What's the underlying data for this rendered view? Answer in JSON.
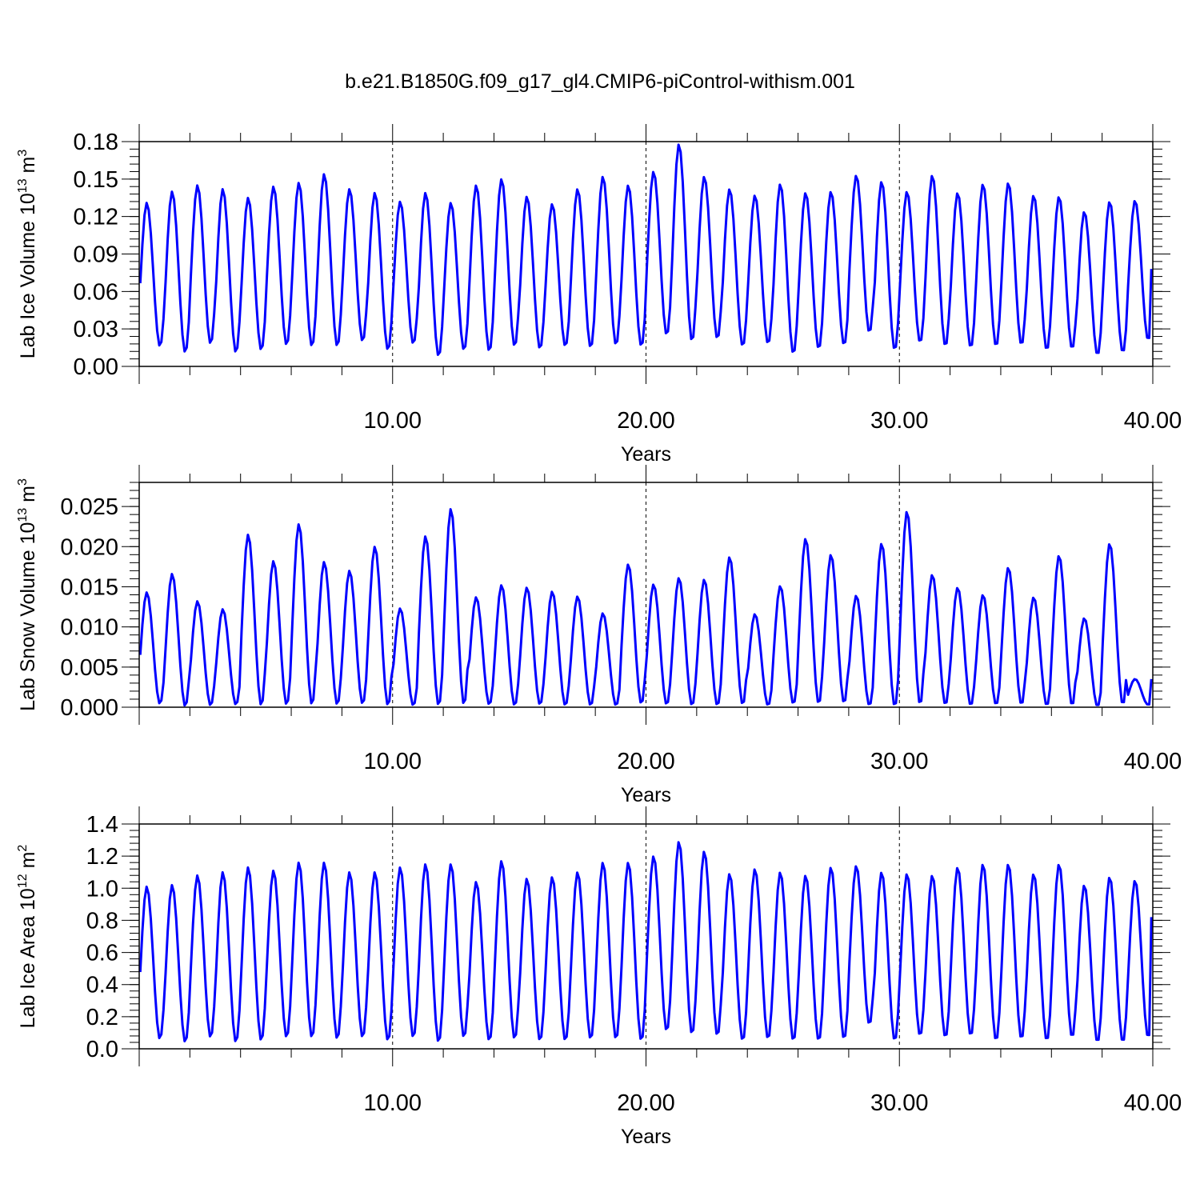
{
  "title": "b.e21.B1850G.f09_g17_gl4.CMIP6-piControl-withism.001",
  "chart_data": [
    {
      "type": "line",
      "name": "lab-ice-volume",
      "ylabel": "Lab Ice Volume 10",
      "ylabel_exp": "13",
      "ylabel_unit": " m",
      "ylabel_unit_exp": "3",
      "xlabel": "Years",
      "xlim": [
        0,
        40
      ],
      "ylim": [
        0,
        0.18
      ],
      "x_ticks": [
        10,
        20,
        30,
        40
      ],
      "x_tick_labels": [
        "10.00",
        "20.00",
        "30.00",
        "40.00"
      ],
      "y_ticks": [
        0,
        0.03,
        0.06,
        0.09,
        0.12,
        0.15,
        0.18
      ],
      "y_tick_labels": [
        "0.00",
        "0.03",
        "0.06",
        "0.09",
        "0.12",
        "0.15",
        "0.18"
      ],
      "grid": "vertical-dashed",
      "color": "#0000ff",
      "series": [
        {
          "x_start": 0.0417,
          "x_step": 0.0833,
          "annual_max": [
            0.131,
            0.14,
            0.145,
            0.142,
            0.135,
            0.144,
            0.147,
            0.154,
            0.142,
            0.139,
            0.132,
            0.139,
            0.131,
            0.145,
            0.15,
            0.136,
            0.13,
            0.142,
            0.152,
            0.145,
            0.156,
            0.178,
            0.152,
            0.142,
            0.137,
            0.146,
            0.139,
            0.14,
            0.153,
            0.148,
            0.14,
            0.153,
            0.139,
            0.146,
            0.147,
            0.137,
            0.136,
            0.124,
            0.132,
            0.133
          ],
          "annual_min": [
            0.016,
            0.011,
            0.018,
            0.011,
            0.013,
            0.017,
            0.016,
            0.016,
            0.02,
            0.013,
            0.018,
            0.008,
            0.013,
            0.012,
            0.016,
            0.014,
            0.016,
            0.015,
            0.017,
            0.016,
            0.025,
            0.02,
            0.022,
            0.016,
            0.018,
            0.01,
            0.014,
            0.017,
            0.027,
            0.013,
            0.019,
            0.016,
            0.015,
            0.016,
            0.017,
            0.013,
            0.014,
            0.009,
            0.011,
            0.021
          ],
          "end_value": 0.078
        }
      ]
    },
    {
      "type": "line",
      "name": "lab-snow-volume",
      "ylabel": "Lab Snow Volume 10",
      "ylabel_exp": "13",
      "ylabel_unit": " m",
      "ylabel_unit_exp": "3",
      "xlabel": "Years",
      "xlim": [
        0,
        40
      ],
      "ylim": [
        0,
        0.028
      ],
      "x_ticks": [
        10,
        20,
        30,
        40
      ],
      "x_tick_labels": [
        "10.00",
        "20.00",
        "30.00",
        "40.00"
      ],
      "y_ticks": [
        0,
        0.005,
        0.01,
        0.015,
        0.02,
        0.025
      ],
      "y_tick_labels": [
        "0.000",
        "0.005",
        "0.010",
        "0.015",
        "0.020",
        "0.025"
      ],
      "grid": "vertical-dashed",
      "color": "#0000ff",
      "series": [
        {
          "x_start": 0.0417,
          "x_step": 0.0833,
          "annual_max": [
            0.0143,
            0.0166,
            0.0132,
            0.0122,
            0.0215,
            0.0182,
            0.0228,
            0.0181,
            0.017,
            0.02,
            0.0123,
            0.0213,
            0.0247,
            0.0137,
            0.0152,
            0.0149,
            0.0144,
            0.0138,
            0.0117,
            0.0178,
            0.0153,
            0.0161,
            0.0159,
            0.0187,
            0.0116,
            0.0151,
            0.021,
            0.019,
            0.0139,
            0.0204,
            0.0244,
            0.0165,
            0.0149,
            0.014,
            0.0174,
            0.0137,
            0.0189,
            0.0111,
            0.0204,
            0.0035
          ],
          "annual_min": [
            0.0004,
            0.0001,
            0.0002,
            0.0003,
            0.0002,
            0.0003,
            0.0003,
            0.0003,
            0.0004,
            0.0002,
            0.0002,
            0.0002,
            0.0003,
            0.0003,
            0.0002,
            0.0003,
            0.0002,
            0.0002,
            0.0002,
            0.0004,
            0.0003,
            0.0002,
            0.0002,
            0.0003,
            0.0002,
            0.0004,
            0.0004,
            0.0005,
            0.0002,
            0.0001,
            0.0003,
            0.0003,
            0.0002,
            0.0003,
            0.0003,
            0.0002,
            0.0002,
            0.0001,
            0.0003,
            0.0003
          ],
          "end_value": 0.0035
        }
      ]
    },
    {
      "type": "line",
      "name": "lab-ice-area",
      "ylabel": "Lab Ice Area 10",
      "ylabel_exp": "12",
      "ylabel_unit": " m",
      "ylabel_unit_exp": "2",
      "xlabel": "Years",
      "xlim": [
        0,
        40
      ],
      "ylim": [
        0,
        1.4
      ],
      "x_ticks": [
        10,
        20,
        30,
        40
      ],
      "x_tick_labels": [
        "10.00",
        "20.00",
        "30.00",
        "40.00"
      ],
      "y_ticks": [
        0,
        0.2,
        0.4,
        0.6,
        0.8,
        1.0,
        1.2,
        1.4
      ],
      "y_tick_labels": [
        "0.0",
        "0.2",
        "0.4",
        "0.6",
        "0.8",
        "1.0",
        "1.2",
        "1.4"
      ],
      "grid": "vertical-dashed",
      "color": "#0000ff",
      "series": [
        {
          "x_start": 0.0417,
          "x_step": 0.0833,
          "annual_max": [
            1.01,
            1.02,
            1.08,
            1.1,
            1.13,
            1.11,
            1.16,
            1.16,
            1.1,
            1.1,
            1.13,
            1.15,
            1.15,
            1.04,
            1.17,
            1.06,
            1.07,
            1.1,
            1.16,
            1.16,
            1.2,
            1.29,
            1.23,
            1.09,
            1.12,
            1.1,
            1.08,
            1.13,
            1.14,
            1.1,
            1.09,
            1.08,
            1.13,
            1.15,
            1.15,
            1.09,
            1.15,
            1.02,
            1.07,
            1.05
          ],
          "annual_min": [
            0.06,
            0.04,
            0.07,
            0.04,
            0.05,
            0.07,
            0.07,
            0.06,
            0.07,
            0.05,
            0.07,
            0.04,
            0.07,
            0.05,
            0.06,
            0.05,
            0.05,
            0.06,
            0.06,
            0.05,
            0.11,
            0.09,
            0.08,
            0.05,
            0.06,
            0.05,
            0.05,
            0.06,
            0.15,
            0.05,
            0.08,
            0.07,
            0.08,
            0.05,
            0.06,
            0.05,
            0.07,
            0.04,
            0.04,
            0.07
          ],
          "end_value": 0.82
        }
      ]
    }
  ]
}
